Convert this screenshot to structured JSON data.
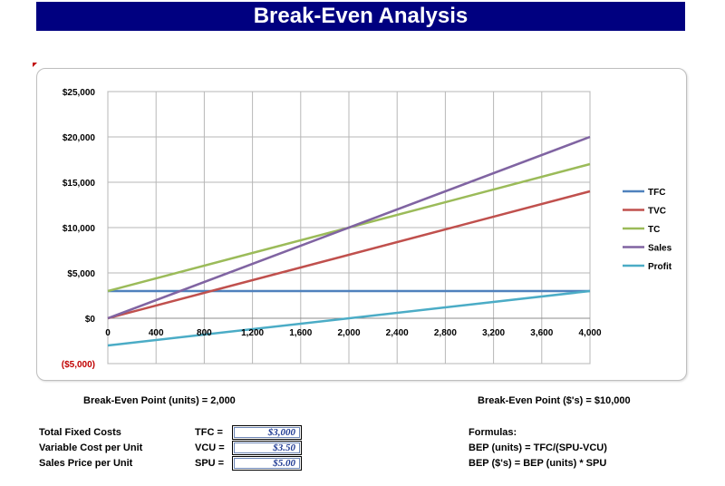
{
  "title": "Break-Even Analysis",
  "chart_data": {
    "type": "line",
    "title": "",
    "xlabel": "",
    "ylabel": "",
    "xlim": [
      0,
      4000
    ],
    "ylim": [
      -5000,
      25000
    ],
    "x_ticks": [
      0,
      400,
      800,
      1200,
      1600,
      2000,
      2400,
      2800,
      3200,
      3600,
      4000
    ],
    "x_tick_labels": [
      "0",
      "400",
      "800",
      "1,200",
      "1,600",
      "2,000",
      "2,400",
      "2,800",
      "3,200",
      "3,600",
      "4,000"
    ],
    "y_ticks": [
      -5000,
      0,
      5000,
      10000,
      15000,
      20000,
      25000
    ],
    "y_tick_labels": [
      "($5,000)",
      "$0",
      "$5,000",
      "$10,000",
      "$15,000",
      "$20,000",
      "$25,000"
    ],
    "negative_tick_color": "#c00000",
    "grid": true,
    "legend_position": "right",
    "x": [
      0,
      4000
    ],
    "series": [
      {
        "name": "TFC",
        "color": "#4f81bd",
        "values": [
          3000,
          3000
        ]
      },
      {
        "name": "TVC",
        "color": "#c0504d",
        "values": [
          0,
          14000
        ]
      },
      {
        "name": "TC",
        "color": "#9bbb59",
        "values": [
          3000,
          17000
        ]
      },
      {
        "name": "Sales",
        "color": "#8064a2",
        "values": [
          0,
          20000
        ]
      },
      {
        "name": "Profit",
        "color": "#4bacc6",
        "values": [
          -3000,
          3000
        ]
      }
    ]
  },
  "bep": {
    "units_text": "Break-Even Point (units) = 2,000",
    "dollars_text": "Break-Even Point ($'s) = $10,000"
  },
  "inputs": [
    {
      "label": "Total Fixed Costs",
      "abbr": "TFC =",
      "value": "$3,000"
    },
    {
      "label": "Variable Cost per Unit",
      "abbr": "VCU =",
      "value": "$3.50"
    },
    {
      "label": "Sales Price per Unit",
      "abbr": "SPU =",
      "value": "$5.00"
    }
  ],
  "formulas": {
    "heading": "Formulas:",
    "bep_units": "BEP (units) = TFC/(SPU-VCU)",
    "bep_dollars": "BEP ($'s) = BEP (units) * SPU"
  }
}
